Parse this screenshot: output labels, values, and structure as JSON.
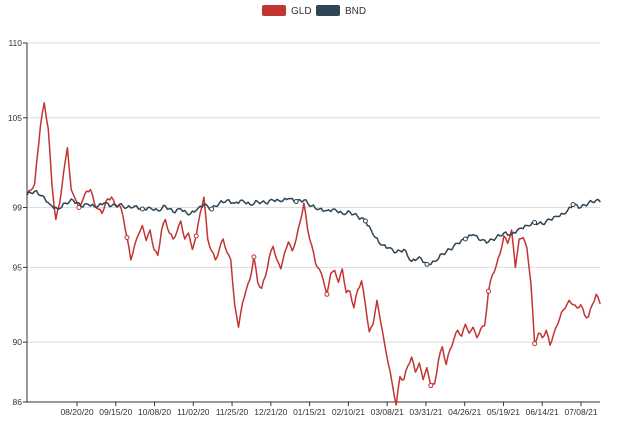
{
  "chart_data": {
    "type": "line",
    "title": "",
    "xlabel": "",
    "ylabel": "",
    "x_tick_labels": [
      "08/20/20",
      "09/15/20",
      "10/08/20",
      "11/02/20",
      "11/25/20",
      "12/21/20",
      "01/15/21",
      "02/10/21",
      "03/08/21",
      "03/31/21",
      "04/26/21",
      "05/19/21",
      "06/14/21",
      "07/08/21"
    ],
    "y_ticks": [
      86,
      90,
      95,
      99,
      105,
      110
    ],
    "y_tick_labels": [
      "86",
      "90",
      "95",
      "99",
      "105",
      "110"
    ],
    "ylim": [
      86,
      110
    ],
    "grid": "horizontal",
    "legend_position": "top-center",
    "x_points": 264,
    "series": [
      {
        "name": "GLD",
        "color": "#c23531",
        "anchors": [
          [
            0,
            99.8
          ],
          [
            4,
            100.6
          ],
          [
            7,
            104.5
          ],
          [
            9,
            106.0
          ],
          [
            11,
            104.3
          ],
          [
            13,
            100.5
          ],
          [
            15,
            98.2
          ],
          [
            17,
            99.3
          ],
          [
            19,
            101.3
          ],
          [
            21,
            103.0
          ],
          [
            23,
            100.2
          ],
          [
            25,
            99.6
          ],
          [
            27,
            99.0
          ],
          [
            29,
            99.5
          ],
          [
            31,
            100.1
          ],
          [
            33,
            100.2
          ],
          [
            35,
            99.3
          ],
          [
            37,
            98.9
          ],
          [
            39,
            98.6
          ],
          [
            41,
            99.4
          ],
          [
            44,
            99.7
          ],
          [
            46,
            99.1
          ],
          [
            48,
            99.2
          ],
          [
            50,
            98.4
          ],
          [
            52,
            97.0
          ],
          [
            54,
            95.5
          ],
          [
            56,
            96.5
          ],
          [
            58,
            97.2
          ],
          [
            60,
            97.8
          ],
          [
            62,
            96.8
          ],
          [
            64,
            97.5
          ],
          [
            66,
            96.2
          ],
          [
            68,
            95.8
          ],
          [
            70,
            97.5
          ],
          [
            72,
            98.2
          ],
          [
            74,
            97.3
          ],
          [
            76,
            96.9
          ],
          [
            78,
            97.4
          ],
          [
            80,
            98.1
          ],
          [
            82,
            96.9
          ],
          [
            84,
            97.3
          ],
          [
            86,
            96.2
          ],
          [
            88,
            97.1
          ],
          [
            90,
            98.6
          ],
          [
            92,
            99.7
          ],
          [
            94,
            96.9
          ],
          [
            96,
            96.1
          ],
          [
            98,
            95.5
          ],
          [
            100,
            96.2
          ],
          [
            102,
            96.9
          ],
          [
            104,
            96.0
          ],
          [
            106,
            95.5
          ],
          [
            108,
            92.5
          ],
          [
            110,
            91.0
          ],
          [
            112,
            92.6
          ],
          [
            114,
            93.5
          ],
          [
            116,
            94.2
          ],
          [
            118,
            95.7
          ],
          [
            120,
            94.0
          ],
          [
            122,
            93.6
          ],
          [
            124,
            94.4
          ],
          [
            126,
            95.7
          ],
          [
            128,
            96.4
          ],
          [
            130,
            95.5
          ],
          [
            132,
            94.9
          ],
          [
            134,
            96.0
          ],
          [
            136,
            96.7
          ],
          [
            138,
            96.1
          ],
          [
            140,
            96.9
          ],
          [
            142,
            98.0
          ],
          [
            144,
            99.3
          ],
          [
            146,
            97.5
          ],
          [
            148,
            96.5
          ],
          [
            150,
            95.3
          ],
          [
            152,
            94.9
          ],
          [
            154,
            94.2
          ],
          [
            156,
            93.2
          ],
          [
            158,
            94.6
          ],
          [
            160,
            94.8
          ],
          [
            162,
            94.0
          ],
          [
            164,
            94.9
          ],
          [
            166,
            93.3
          ],
          [
            168,
            93.4
          ],
          [
            170,
            92.3
          ],
          [
            172,
            93.5
          ],
          [
            174,
            94.1
          ],
          [
            176,
            92.5
          ],
          [
            178,
            90.7
          ],
          [
            180,
            91.2
          ],
          [
            182,
            92.8
          ],
          [
            184,
            91.3
          ],
          [
            186,
            89.9
          ],
          [
            188,
            88.5
          ],
          [
            190,
            87.2
          ],
          [
            192,
            85.8
          ],
          [
            194,
            87.7
          ],
          [
            196,
            87.5
          ],
          [
            198,
            88.4
          ],
          [
            200,
            89.0
          ],
          [
            202,
            88.0
          ],
          [
            204,
            88.6
          ],
          [
            206,
            87.5
          ],
          [
            208,
            88.3
          ],
          [
            210,
            87.1
          ],
          [
            212,
            87.2
          ],
          [
            214,
            88.8
          ],
          [
            216,
            89.7
          ],
          [
            218,
            88.5
          ],
          [
            220,
            89.5
          ],
          [
            222,
            90.2
          ],
          [
            224,
            90.8
          ],
          [
            226,
            90.4
          ],
          [
            228,
            91.2
          ],
          [
            230,
            90.6
          ],
          [
            232,
            91.0
          ],
          [
            234,
            90.3
          ],
          [
            236,
            90.9
          ],
          [
            238,
            91.1
          ],
          [
            240,
            93.4
          ],
          [
            242,
            94.5
          ],
          [
            244,
            95.1
          ],
          [
            246,
            95.9
          ],
          [
            248,
            97.1
          ],
          [
            250,
            96.6
          ],
          [
            252,
            97.5
          ],
          [
            254,
            95.0
          ],
          [
            256,
            96.9
          ],
          [
            258,
            97.0
          ],
          [
            260,
            96.3
          ],
          [
            262,
            94.0
          ],
          [
            264,
            89.9
          ]
        ],
        "anchors_tail": [
          [
            266,
            90.6
          ],
          [
            268,
            90.3
          ],
          [
            270,
            90.8
          ],
          [
            272,
            89.8
          ],
          [
            274,
            90.6
          ],
          [
            276,
            91.2
          ],
          [
            278,
            92.0
          ],
          [
            280,
            92.3
          ],
          [
            282,
            92.8
          ],
          [
            284,
            92.5
          ],
          [
            286,
            92.3
          ],
          [
            288,
            92.5
          ],
          [
            290,
            91.8
          ],
          [
            292,
            91.7
          ],
          [
            294,
            92.5
          ],
          [
            296,
            93.2
          ],
          [
            298,
            92.6
          ]
        ],
        "markers": [
          27,
          52,
          88,
          118,
          156,
          210,
          240,
          264
        ]
      },
      {
        "name": "BND",
        "color": "#2f4554",
        "anchors": [
          [
            0,
            99.9
          ],
          [
            4,
            100.1
          ],
          [
            8,
            99.8
          ],
          [
            12,
            99.2
          ],
          [
            16,
            98.9
          ],
          [
            20,
            99.3
          ],
          [
            24,
            99.5
          ],
          [
            28,
            99.1
          ],
          [
            32,
            99.2
          ],
          [
            36,
            99.0
          ],
          [
            40,
            99.3
          ],
          [
            44,
            99.1
          ],
          [
            48,
            99.2
          ],
          [
            52,
            99.0
          ],
          [
            56,
            99.1
          ],
          [
            60,
            98.9
          ],
          [
            64,
            99.0
          ],
          [
            68,
            98.8
          ],
          [
            72,
            99.1
          ],
          [
            76,
            98.7
          ],
          [
            80,
            98.9
          ],
          [
            84,
            98.5
          ],
          [
            88,
            98.8
          ],
          [
            92,
            99.2
          ],
          [
            96,
            98.9
          ],
          [
            100,
            99.3
          ],
          [
            104,
            99.5
          ],
          [
            108,
            99.3
          ],
          [
            112,
            99.5
          ],
          [
            116,
            99.2
          ],
          [
            120,
            99.4
          ],
          [
            124,
            99.3
          ],
          [
            128,
            99.5
          ],
          [
            132,
            99.4
          ],
          [
            136,
            99.6
          ],
          [
            140,
            99.4
          ],
          [
            144,
            99.5
          ],
          [
            148,
            99.1
          ],
          [
            152,
            98.9
          ],
          [
            156,
            98.8
          ],
          [
            160,
            98.9
          ],
          [
            164,
            98.6
          ],
          [
            168,
            98.7
          ],
          [
            172,
            98.4
          ],
          [
            176,
            98.1
          ],
          [
            180,
            97.2
          ],
          [
            184,
            96.5
          ],
          [
            188,
            96.3
          ],
          [
            192,
            96.0
          ],
          [
            196,
            96.2
          ],
          [
            200,
            95.4
          ],
          [
            204,
            95.7
          ],
          [
            208,
            95.2
          ],
          [
            212,
            95.4
          ],
          [
            216,
            95.9
          ],
          [
            220,
            96.2
          ],
          [
            224,
            96.6
          ],
          [
            228,
            96.9
          ],
          [
            232,
            97.2
          ],
          [
            236,
            96.8
          ],
          [
            240,
            96.7
          ],
          [
            244,
            97.0
          ],
          [
            248,
            97.3
          ],
          [
            252,
            97.2
          ],
          [
            256,
            97.6
          ],
          [
            260,
            97.8
          ],
          [
            264,
            98.0
          ]
        ],
        "anchors_tail": [
          [
            268,
            97.9
          ],
          [
            272,
            98.2
          ],
          [
            276,
            98.4
          ],
          [
            280,
            98.6
          ],
          [
            284,
            99.2
          ],
          [
            288,
            99.0
          ],
          [
            292,
            99.3
          ],
          [
            296,
            99.5
          ],
          [
            298,
            99.4
          ]
        ],
        "markers": [
          60,
          96,
          140,
          176,
          208,
          228,
          264,
          284
        ]
      }
    ]
  }
}
